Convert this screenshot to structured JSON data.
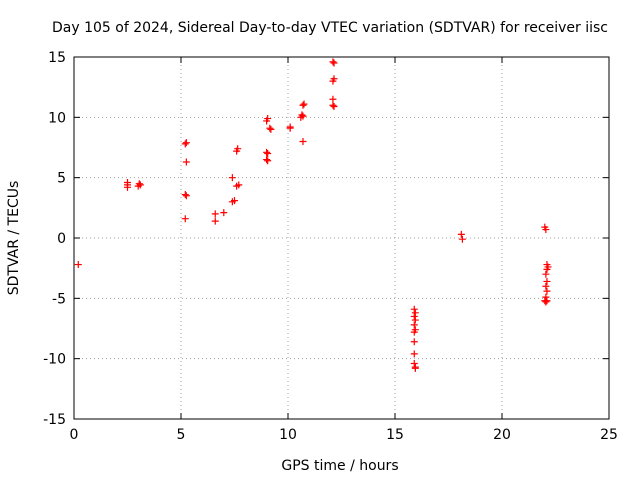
{
  "chart_data": {
    "type": "scatter",
    "title": "Day 105 of 2024, Sidereal Day-to-day VTEC variation (SDTVAR) for receiver iisc",
    "xlabel": "GPS time / hours",
    "ylabel": "SDTVAR / TECUs",
    "xlim": [
      0,
      25
    ],
    "ylim": [
      -15,
      15
    ],
    "xticks": [
      0,
      5,
      10,
      15,
      20,
      25
    ],
    "yticks": [
      -15,
      -10,
      -5,
      0,
      5,
      10,
      15
    ],
    "xtick_labels": [
      "0",
      "5",
      "10",
      "15",
      "20",
      "25"
    ],
    "ytick_labels": [
      "-15",
      "-10",
      "-5",
      "0",
      "5",
      "10",
      "15"
    ],
    "grid": true,
    "marker": "+",
    "color": "#ff0000",
    "points": [
      [
        0.2,
        -2.2
      ],
      [
        2.5,
        4.2
      ],
      [
        2.5,
        4.4
      ],
      [
        2.5,
        4.6
      ],
      [
        3.0,
        4.3
      ],
      [
        3.05,
        4.5
      ],
      [
        3.1,
        4.4
      ],
      [
        5.2,
        7.8
      ],
      [
        5.25,
        7.9
      ],
      [
        5.25,
        6.3
      ],
      [
        5.2,
        3.6
      ],
      [
        5.25,
        3.5
      ],
      [
        5.2,
        1.6
      ],
      [
        6.6,
        2.0
      ],
      [
        6.6,
        1.4
      ],
      [
        7.0,
        2.1
      ],
      [
        7.4,
        5.0
      ],
      [
        7.4,
        3.0
      ],
      [
        7.5,
        3.1
      ],
      [
        7.6,
        7.2
      ],
      [
        7.65,
        7.4
      ],
      [
        7.6,
        4.3
      ],
      [
        7.7,
        4.4
      ],
      [
        9.0,
        9.7
      ],
      [
        9.05,
        9.9
      ],
      [
        9.0,
        7.1
      ],
      [
        9.05,
        7.0
      ],
      [
        9.0,
        6.5
      ],
      [
        9.05,
        6.4
      ],
      [
        9.15,
        9.1
      ],
      [
        9.2,
        9.0
      ],
      [
        10.1,
        9.2
      ],
      [
        10.1,
        9.1
      ],
      [
        10.6,
        10.0
      ],
      [
        10.65,
        10.2
      ],
      [
        10.7,
        10.1
      ],
      [
        10.7,
        11.0
      ],
      [
        10.75,
        11.1
      ],
      [
        10.7,
        8.0
      ],
      [
        12.1,
        14.6
      ],
      [
        12.15,
        14.5
      ],
      [
        12.1,
        13.0
      ],
      [
        12.15,
        13.2
      ],
      [
        12.1,
        11.5
      ],
      [
        12.1,
        11.0
      ],
      [
        12.15,
        10.9
      ],
      [
        15.9,
        -5.9
      ],
      [
        15.95,
        -6.2
      ],
      [
        15.9,
        -6.5
      ],
      [
        15.95,
        -6.8
      ],
      [
        15.9,
        -7.2
      ],
      [
        15.95,
        -7.6
      ],
      [
        15.9,
        -7.8
      ],
      [
        15.9,
        -8.6
      ],
      [
        15.9,
        -9.6
      ],
      [
        15.9,
        -10.4
      ],
      [
        15.95,
        -10.7
      ],
      [
        15.95,
        -10.8
      ],
      [
        18.1,
        0.3
      ],
      [
        18.15,
        -0.1
      ],
      [
        22.0,
        0.9
      ],
      [
        22.05,
        0.7
      ],
      [
        22.1,
        -2.2
      ],
      [
        22.15,
        -2.4
      ],
      [
        22.1,
        -2.6
      ],
      [
        22.05,
        -3.0
      ],
      [
        22.1,
        -3.6
      ],
      [
        22.05,
        -4.0
      ],
      [
        22.1,
        -4.4
      ],
      [
        22.05,
        -4.9
      ],
      [
        22.0,
        -5.2
      ],
      [
        22.05,
        -5.3
      ],
      [
        22.1,
        -5.2
      ]
    ]
  }
}
